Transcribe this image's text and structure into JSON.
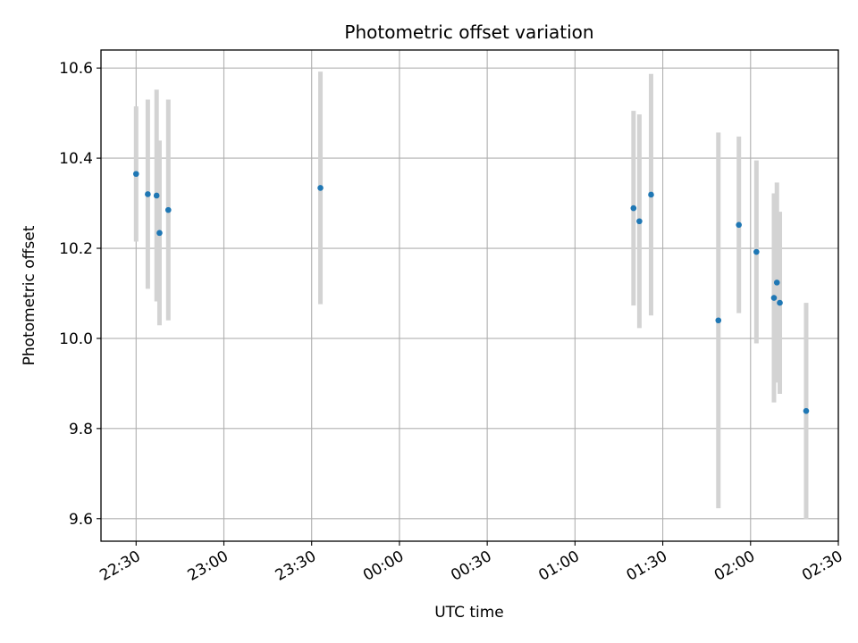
{
  "chart_data": {
    "type": "scatter",
    "title": "Photometric offset variation",
    "xlabel": "UTC time",
    "ylabel": "Photometric offset",
    "x_tick_labels": [
      "22:30",
      "23:00",
      "23:30",
      "00:00",
      "00:30",
      "01:00",
      "01:30",
      "02:00",
      "02:30"
    ],
    "y_tick_labels": [
      "9.6",
      "9.8",
      "10.0",
      "10.2",
      "10.4",
      "10.6"
    ],
    "y_ticks": [
      9.6,
      9.8,
      10.0,
      10.2,
      10.4,
      10.6
    ],
    "xlim": [
      "22:18",
      "02:30"
    ],
    "ylim": [
      9.55,
      10.64
    ],
    "grid": true,
    "colors": {
      "point": "#1f77b4",
      "error_bar": "#d3d3d3",
      "grid": "#b0b0b0"
    },
    "points": [
      {
        "t": "22:30",
        "y": 10.365,
        "err": 0.15
      },
      {
        "t": "22:34",
        "y": 10.32,
        "err": 0.21
      },
      {
        "t": "22:37",
        "y": 10.317,
        "err": 0.235
      },
      {
        "t": "22:38",
        "y": 10.234,
        "err": 0.205
      },
      {
        "t": "22:41",
        "y": 10.285,
        "err": 0.245
      },
      {
        "t": "23:33",
        "y": 10.334,
        "err": 0.258
      },
      {
        "t": "01:20",
        "y": 10.289,
        "err": 0.216
      },
      {
        "t": "01:22",
        "y": 10.26,
        "err": 0.237
      },
      {
        "t": "01:26",
        "y": 10.319,
        "err": 0.268
      },
      {
        "t": "01:49",
        "y": 10.04,
        "err": 0.417
      },
      {
        "t": "01:56",
        "y": 10.252,
        "err": 0.196
      },
      {
        "t": "02:02",
        "y": 10.192,
        "err": 0.203
      },
      {
        "t": "02:08",
        "y": 10.09,
        "err": 0.232
      },
      {
        "t": "02:09",
        "y": 10.124,
        "err": 0.222
      },
      {
        "t": "02:10",
        "y": 10.079,
        "err": 0.202
      },
      {
        "t": "02:19",
        "y": 9.839,
        "err": 0.24
      }
    ]
  }
}
